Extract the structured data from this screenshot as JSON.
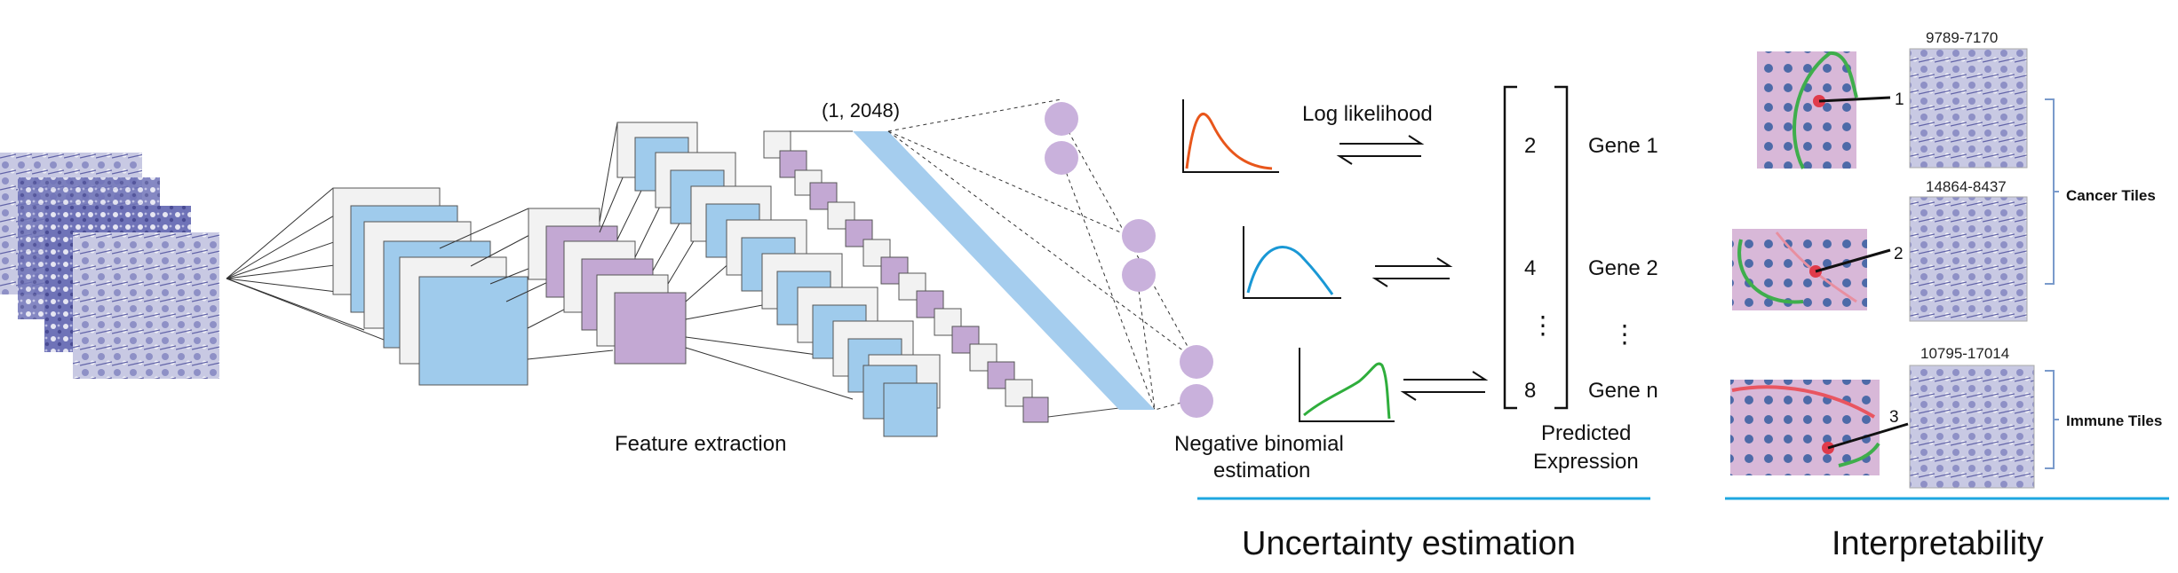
{
  "pipeline": {
    "feature_label": "Feature extraction",
    "feature_dim": "(1, 2048)",
    "nb_label_line1": "Negative binomial",
    "nb_label_line2": "estimation",
    "loglik_label": "Log likelihood"
  },
  "expression": {
    "values": [
      "2",
      "4",
      "8"
    ],
    "genes": [
      "Gene 1",
      "Gene 2",
      "Gene n"
    ],
    "dots": "⋮",
    "label_line1": "Predicted",
    "label_line2": "Expression"
  },
  "interpretability": {
    "tile_ids": [
      "9789-7170",
      "14864-8437",
      "10795-17014"
    ],
    "markers": [
      "1",
      "2",
      "3"
    ],
    "cancer_label": "Cancer Tiles",
    "immune_label": "Immune Tiles"
  },
  "sections": {
    "uncertainty": "Uncertainty estimation",
    "interpretability": "Interpretability"
  },
  "colors": {
    "blue_block": "#9fcbec",
    "purple_block": "#c3a8d3",
    "node": "#c9b1dc",
    "accent_line": "#1fa7e0",
    "curve_orange": "#e8561b",
    "curve_blue": "#1a98d5",
    "curve_green": "#2fae3c"
  }
}
